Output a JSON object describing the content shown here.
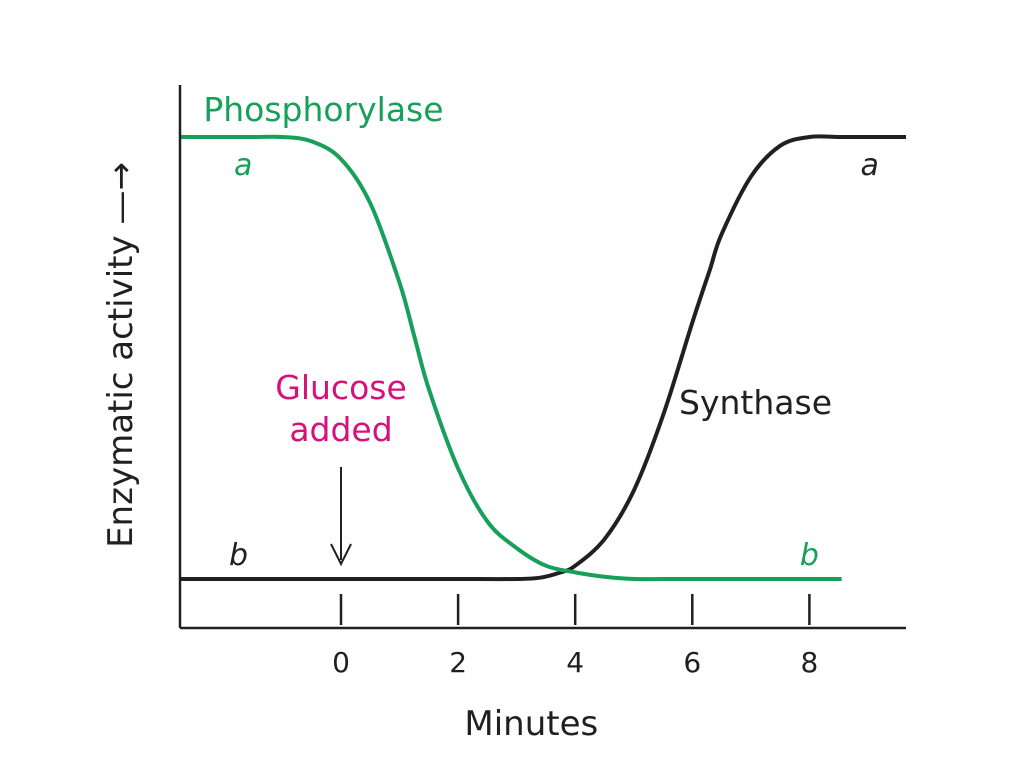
{
  "chart_data": {
    "type": "line",
    "xlabel": "Minutes",
    "ylabel": "Enzymatic activity —→",
    "xlim": [
      -2.75,
      9.65
    ],
    "ylim": [
      -0.1,
      1.0
    ],
    "xticks": [
      0,
      2,
      4,
      6,
      8
    ],
    "xtick_labels": [
      "0",
      "2",
      "4",
      "6",
      "8"
    ],
    "grid": false,
    "series": [
      {
        "name": "Phosphorylase",
        "color": "#16a05a",
        "high_label": "a",
        "low_label": "b",
        "x": [
          -2.75,
          -2,
          -1.5,
          -1,
          -0.5,
          0,
          0.5,
          1,
          1.25,
          1.5,
          2,
          2.5,
          3,
          3.5,
          4,
          4.5,
          5,
          5.5,
          6,
          7,
          8,
          8.55
        ],
        "y": [
          1.0,
          1.0,
          1.0,
          1.0,
          0.99,
          0.95,
          0.85,
          0.67,
          0.55,
          0.43,
          0.25,
          0.13,
          0.07,
          0.03,
          0.015,
          0.005,
          0.0,
          0.0,
          0.0,
          0.0,
          0.0,
          0.0
        ]
      },
      {
        "name": "Synthase",
        "color": "#231f20",
        "high_label": "a",
        "low_label": "b",
        "x": [
          -2.75,
          -1,
          0,
          1,
          2,
          3,
          3.4,
          3.75,
          4,
          4.5,
          5,
          5.5,
          6,
          6.3,
          6.5,
          7,
          7.5,
          8,
          8.5,
          9,
          9.65
        ],
        "y": [
          0.0,
          0.0,
          0.0,
          0.0,
          0.0,
          0.0,
          0.003,
          0.015,
          0.03,
          0.09,
          0.2,
          0.37,
          0.58,
          0.7,
          0.78,
          0.91,
          0.98,
          1.0,
          1.0,
          1.0,
          1.0
        ]
      }
    ],
    "annotations": [
      {
        "lines": [
          "Glucose",
          "added"
        ],
        "x": 0,
        "color": "#d6117a",
        "arrow": true
      }
    ]
  }
}
